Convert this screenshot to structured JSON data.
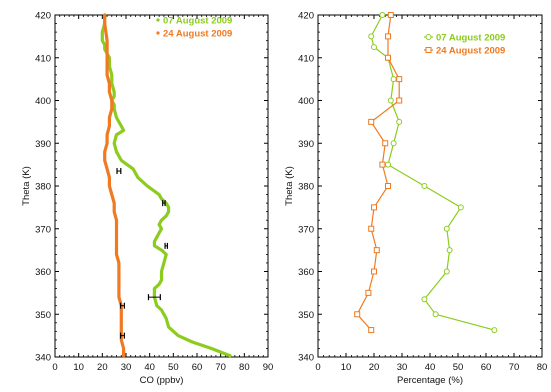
{
  "colors": {
    "aug07": "#8ccc1e",
    "aug24": "#f07a22",
    "axis": "#000000"
  },
  "chart_data": [
    {
      "type": "line",
      "panel": "left",
      "xlabel": "CO (ppbv)",
      "ylabel": "Theta (K)",
      "xlim": [
        0,
        90
      ],
      "ylim": [
        340,
        420
      ],
      "xticks": [
        "0",
        "10",
        "20",
        "30",
        "40",
        "50",
        "60",
        "70",
        "80",
        "90"
      ],
      "yticks": [
        "340",
        "350",
        "360",
        "370",
        "380",
        "390",
        "400",
        "410",
        "420"
      ],
      "legend_position": "top-right",
      "grid": false,
      "series": [
        {
          "name": "07 August 2009",
          "color": "#8ccc1e",
          "x": [
            74,
            66,
            58,
            52,
            48,
            47,
            45,
            43,
            42,
            42,
            44,
            45,
            45,
            46,
            47,
            45,
            42,
            42,
            43,
            44,
            45,
            44,
            45,
            47,
            48,
            48,
            47,
            45,
            44,
            39,
            35,
            34,
            33,
            28,
            26,
            25,
            26,
            29,
            28,
            26,
            25,
            25,
            24,
            25,
            25,
            24,
            24,
            23,
            23,
            22,
            21,
            21,
            20,
            20,
            21,
            21
          ],
          "y": [
            340.3,
            342,
            343.5,
            345,
            347,
            349,
            351,
            352,
            354,
            356,
            357,
            358,
            360,
            362,
            364,
            365,
            366,
            367,
            368,
            369,
            370,
            371,
            372,
            373,
            374,
            375,
            376,
            377,
            378,
            380,
            382,
            383,
            384,
            386,
            388,
            390,
            392,
            393,
            394,
            396,
            398,
            399,
            400,
            401,
            402,
            404,
            406,
            408,
            410,
            411,
            412,
            413,
            414,
            416,
            418,
            420
          ]
        },
        {
          "name": "24 August 2009",
          "color": "#f07a22",
          "x": [
            29,
            29,
            28,
            28,
            28,
            28,
            28,
            27,
            27,
            27,
            27,
            27,
            26,
            26,
            26,
            26,
            26,
            25,
            25,
            24,
            23,
            23,
            22,
            21,
            21,
            22,
            22,
            23,
            23,
            24,
            24,
            23,
            23,
            22,
            22,
            22,
            22,
            21,
            21
          ],
          "y": [
            340.3,
            342,
            344,
            346,
            348,
            350,
            352,
            354,
            356,
            358,
            360,
            362,
            364,
            366,
            368,
            370,
            372,
            374,
            376,
            378,
            380,
            382,
            384,
            386,
            388,
            390,
            392,
            394,
            396,
            398,
            400,
            402,
            404,
            406,
            408,
            410,
            414,
            418,
            420
          ]
        }
      ],
      "error_bars": [
        {
          "x": 42,
          "y": 354,
          "xerr": 2.5
        },
        {
          "x": 28.5,
          "y": 352,
          "xerr": 0.8
        },
        {
          "x": 28.5,
          "y": 345,
          "xerr": 0.8
        },
        {
          "x": 27,
          "y": 383.5,
          "xerr": 0.8
        },
        {
          "x": 47,
          "y": 366,
          "xerr": 0.5
        },
        {
          "x": 46,
          "y": 376,
          "xerr": 0.5
        }
      ]
    },
    {
      "type": "line",
      "panel": "right",
      "xlabel": "Percentage (%)",
      "ylabel": "Theta (K)",
      "xlim": [
        0,
        80
      ],
      "ylim": [
        340,
        420
      ],
      "xticks": [
        "0",
        "10",
        "20",
        "30",
        "40",
        "50",
        "60",
        "70",
        "80"
      ],
      "yticks": [
        "340",
        "350",
        "360",
        "370",
        "380",
        "390",
        "400",
        "410",
        "420"
      ],
      "legend_position": "top-right",
      "grid": false,
      "series": [
        {
          "name": "07 August 2009",
          "marker": "circle",
          "color": "#8ccc1e",
          "x": [
            63,
            42,
            38,
            46,
            47,
            46,
            51,
            38,
            25,
            27,
            29,
            26,
            27,
            25,
            20,
            19,
            23
          ],
          "y": [
            346.3,
            350,
            353.5,
            360,
            365,
            370,
            375,
            380,
            385,
            390,
            395,
            400,
            405,
            410,
            412.5,
            415,
            420
          ]
        },
        {
          "name": "24 August 2009",
          "marker": "square",
          "color": "#f07a22",
          "x": [
            19,
            14,
            18,
            20,
            21,
            19,
            20,
            25,
            23,
            24,
            19,
            29,
            29,
            25,
            25,
            26
          ],
          "y": [
            346.3,
            350,
            355,
            360,
            365,
            370,
            375,
            380,
            385,
            390,
            395,
            400,
            405,
            410,
            415,
            420
          ]
        }
      ]
    }
  ]
}
